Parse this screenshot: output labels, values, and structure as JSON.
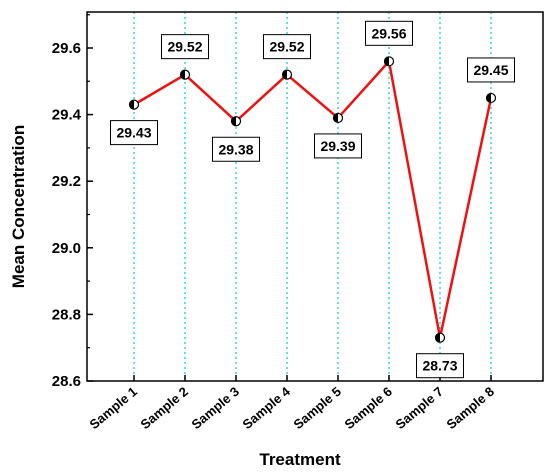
{
  "chart_data": {
    "type": "line",
    "title": "",
    "xlabel": "Treatment",
    "ylabel": "Mean Concentration",
    "categories": [
      "Sample 1",
      "Sample 2",
      "Sample 3",
      "Sample 4",
      "Sample 5",
      "Sample 6",
      "Sample 7",
      "Sample 8"
    ],
    "series": [
      {
        "values": [
          29.43,
          29.52,
          29.38,
          29.52,
          29.39,
          29.56,
          28.73,
          29.45
        ],
        "data_labels": [
          "29.43",
          "29.52",
          "29.38",
          "29.52",
          "29.39",
          "29.56",
          "28.73",
          "29.45"
        ],
        "label_side": [
          "below",
          "above",
          "below",
          "above",
          "below",
          "above",
          "below",
          "above"
        ]
      }
    ],
    "ylim": [
      28.6,
      29.7
    ],
    "yticks": [
      28.6,
      28.8,
      29.0,
      29.2,
      29.4,
      29.6
    ],
    "ytick_labels": [
      "28.6",
      "28.8",
      "29.0",
      "29.2",
      "29.4",
      "29.6"
    ],
    "grid": "vertical dotted at categories",
    "line_color": "#ee1111",
    "grid_color": "#00c8d2",
    "marker": "half-filled circle"
  }
}
